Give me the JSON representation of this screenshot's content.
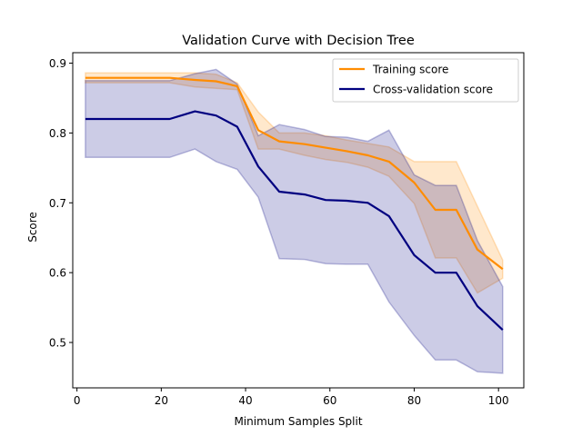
{
  "chart_data": {
    "type": "line",
    "title": "Validation Curve with Decision Tree",
    "xlabel": "Minimum Samples Split",
    "ylabel": "Score",
    "xlim": [
      -1,
      106
    ],
    "ylim": [
      0.435,
      0.915
    ],
    "xticks": [
      0,
      20,
      40,
      60,
      80,
      100
    ],
    "yticks": [
      0.5,
      0.6,
      0.7,
      0.8,
      0.9
    ],
    "grid": false,
    "legend_position": "top-right",
    "x": [
      2,
      7,
      12,
      17,
      22,
      28,
      33,
      38,
      43,
      48,
      54,
      59,
      64,
      69,
      74,
      80,
      85,
      90,
      95,
      101
    ],
    "series": [
      {
        "name": "Training score",
        "color": "#ff8c00",
        "values": [
          0.879,
          0.879,
          0.879,
          0.879,
          0.879,
          0.876,
          0.874,
          0.867,
          0.804,
          0.788,
          0.784,
          0.779,
          0.774,
          0.768,
          0.759,
          0.729,
          0.69,
          0.69,
          0.633,
          0.605
        ],
        "upper": [
          0.886,
          0.886,
          0.886,
          0.886,
          0.886,
          0.886,
          0.884,
          0.872,
          0.83,
          0.8,
          0.8,
          0.796,
          0.79,
          0.785,
          0.78,
          0.759,
          0.759,
          0.759,
          0.695,
          0.618
        ],
        "lower": [
          0.872,
          0.872,
          0.872,
          0.872,
          0.872,
          0.866,
          0.864,
          0.862,
          0.777,
          0.777,
          0.768,
          0.762,
          0.758,
          0.751,
          0.738,
          0.699,
          0.621,
          0.621,
          0.571,
          0.592
        ]
      },
      {
        "name": "Cross-validation score",
        "color": "#000080",
        "values": [
          0.82,
          0.82,
          0.82,
          0.82,
          0.82,
          0.831,
          0.825,
          0.809,
          0.752,
          0.716,
          0.712,
          0.704,
          0.703,
          0.7,
          0.681,
          0.625,
          0.6,
          0.6,
          0.552,
          0.518
        ],
        "upper": [
          0.875,
          0.875,
          0.875,
          0.875,
          0.875,
          0.885,
          0.891,
          0.87,
          0.796,
          0.812,
          0.805,
          0.795,
          0.794,
          0.788,
          0.804,
          0.74,
          0.725,
          0.725,
          0.646,
          0.58
        ],
        "lower": [
          0.765,
          0.765,
          0.765,
          0.765,
          0.765,
          0.777,
          0.759,
          0.748,
          0.708,
          0.62,
          0.619,
          0.613,
          0.612,
          0.612,
          0.558,
          0.51,
          0.475,
          0.475,
          0.458,
          0.456
        ]
      }
    ]
  }
}
